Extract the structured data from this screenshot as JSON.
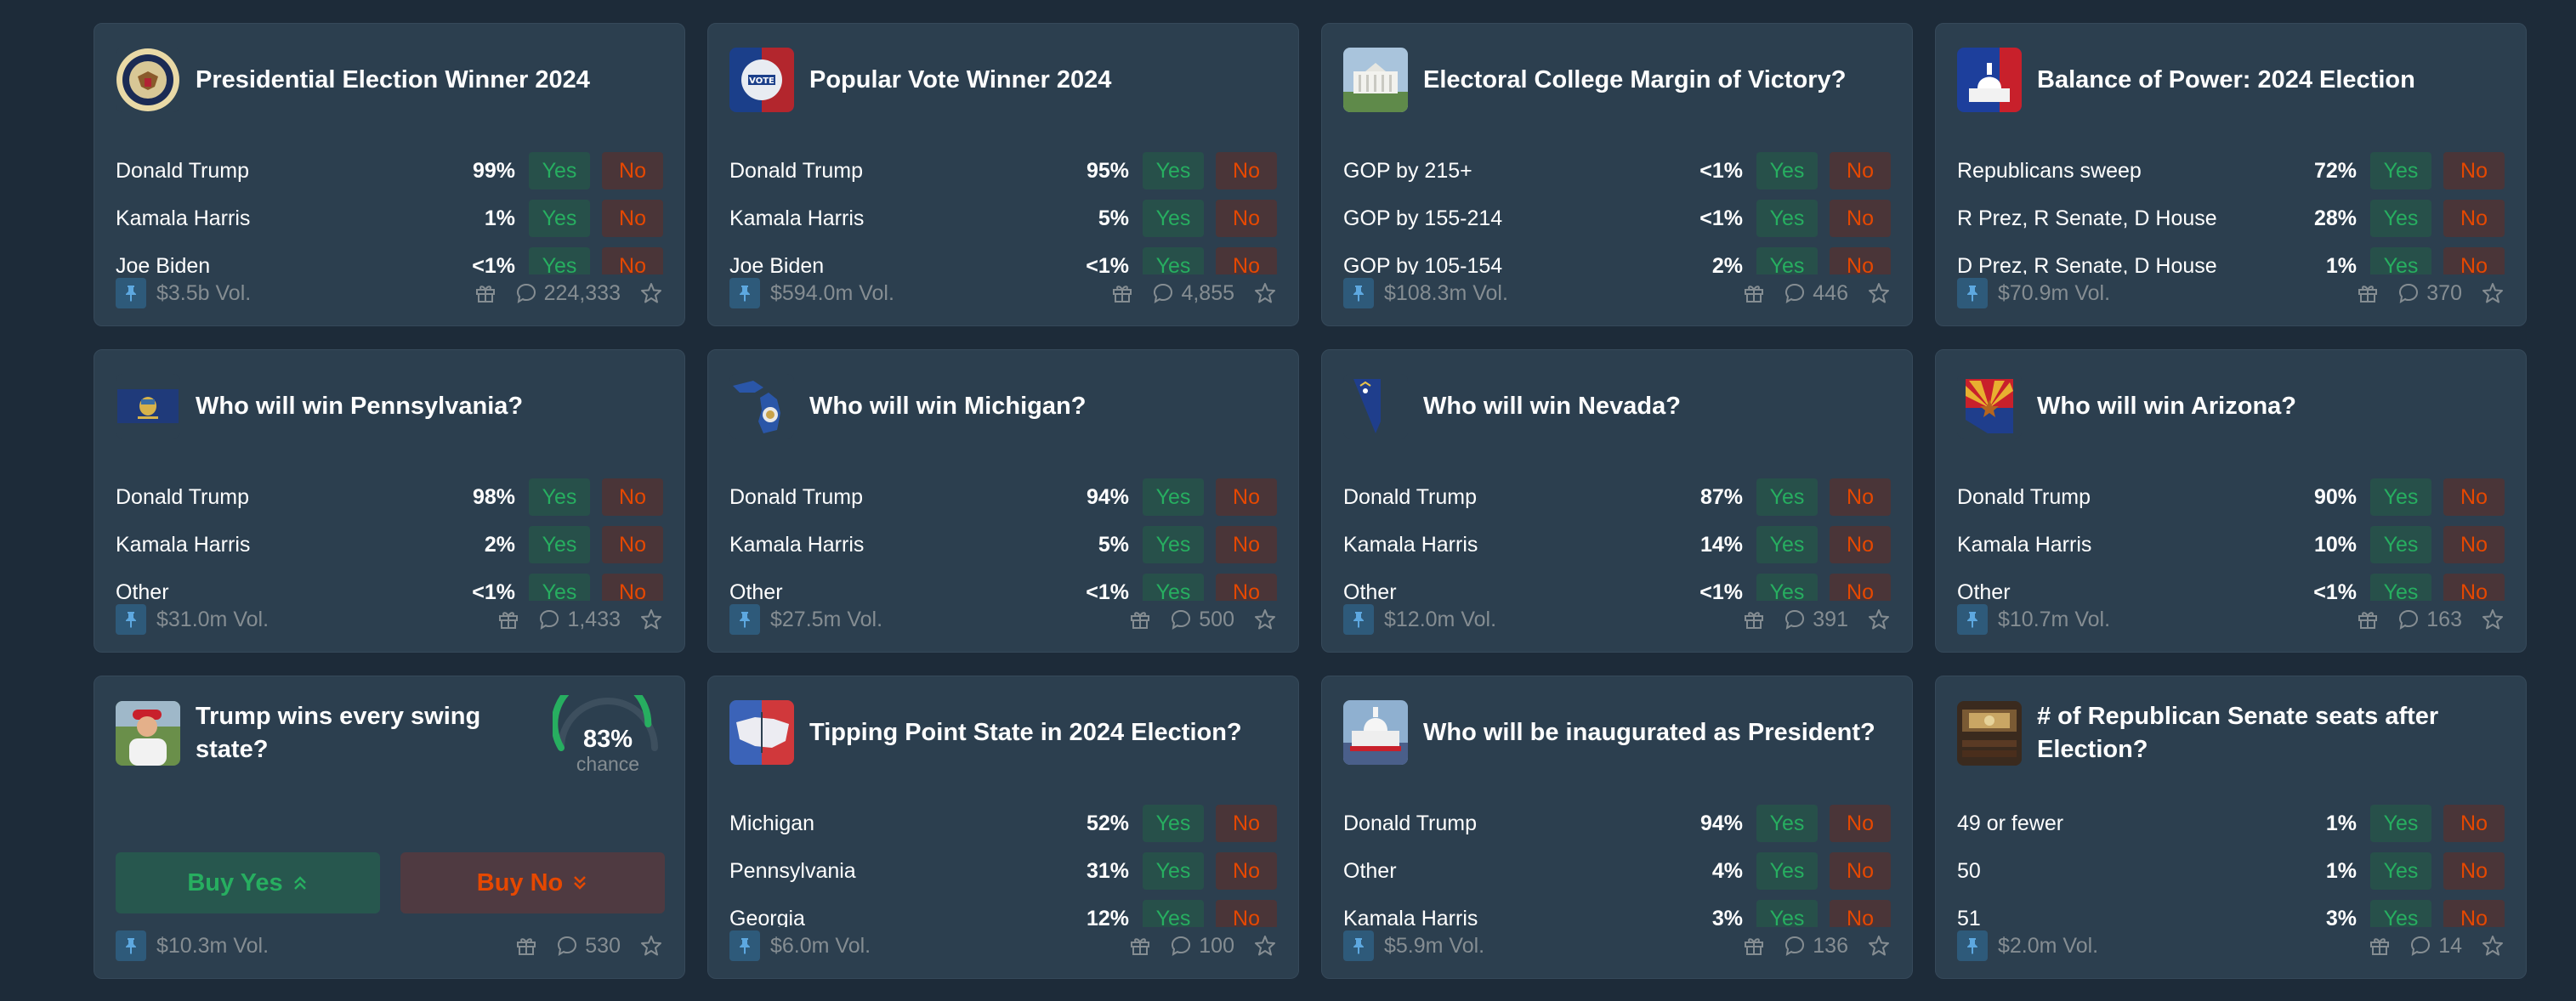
{
  "colors": {
    "background": "#1d2b39",
    "card": "#2c3f4f",
    "yes": "#27ae60",
    "no": "#e64800",
    "muted": "#858d92"
  },
  "labels": {
    "yes": "Yes",
    "no": "No"
  },
  "cards": [
    {
      "title": "Presidential Election Winner 2024",
      "thumb": "presidential-seal",
      "rows": [
        {
          "name": "Donald Trump",
          "pct": "99%"
        },
        {
          "name": "Kamala Harris",
          "pct": "1%"
        },
        {
          "name": "Joe Biden",
          "pct": "<1%"
        }
      ],
      "volume": "$3.5b Vol.",
      "comments": "224,333"
    },
    {
      "title": "Popular Vote Winner 2024",
      "thumb": "vote-button",
      "rows": [
        {
          "name": "Donald Trump",
          "pct": "95%"
        },
        {
          "name": "Kamala Harris",
          "pct": "5%"
        },
        {
          "name": "Joe Biden",
          "pct": "<1%"
        }
      ],
      "volume": "$594.0m Vol.",
      "comments": "4,855"
    },
    {
      "title": "Electoral College Margin of Victory?",
      "thumb": "white-house",
      "rows": [
        {
          "name": "GOP by 215+",
          "pct": "<1%"
        },
        {
          "name": "GOP by 155-214",
          "pct": "<1%"
        },
        {
          "name": "GOP by 105-154",
          "pct": "2%"
        }
      ],
      "volume": "$108.3m Vol.",
      "comments": "446"
    },
    {
      "title": "Balance of Power: 2024 Election",
      "thumb": "capitol-flag",
      "rows": [
        {
          "name": "Republicans sweep",
          "pct": "72%"
        },
        {
          "name": "R Prez, R Senate, D House",
          "pct": "28%"
        },
        {
          "name": "D Prez, R Senate, D House",
          "pct": "1%"
        }
      ],
      "volume": "$70.9m Vol.",
      "comments": "370"
    },
    {
      "title": "Who will win Pennsylvania?",
      "thumb": "pennsylvania-flag",
      "rows": [
        {
          "name": "Donald Trump",
          "pct": "98%"
        },
        {
          "name": "Kamala Harris",
          "pct": "2%"
        },
        {
          "name": "Other",
          "pct": "<1%"
        }
      ],
      "volume": "$31.0m Vol.",
      "comments": "1,433"
    },
    {
      "title": "Who will win Michigan?",
      "thumb": "michigan-map",
      "rows": [
        {
          "name": "Donald Trump",
          "pct": "94%"
        },
        {
          "name": "Kamala Harris",
          "pct": "5%"
        },
        {
          "name": "Other",
          "pct": "<1%"
        }
      ],
      "volume": "$27.5m Vol.",
      "comments": "500"
    },
    {
      "title": "Who will win Nevada?",
      "thumb": "nevada-map",
      "rows": [
        {
          "name": "Donald Trump",
          "pct": "87%"
        },
        {
          "name": "Kamala Harris",
          "pct": "14%"
        },
        {
          "name": "Other",
          "pct": "<1%"
        }
      ],
      "volume": "$12.0m Vol.",
      "comments": "391"
    },
    {
      "title": "Who will win Arizona?",
      "thumb": "arizona-map",
      "rows": [
        {
          "name": "Donald Trump",
          "pct": "90%"
        },
        {
          "name": "Kamala Harris",
          "pct": "10%"
        },
        {
          "name": "Other",
          "pct": "<1%"
        }
      ],
      "volume": "$10.7m Vol.",
      "comments": "163"
    },
    {
      "title": "Trump wins every swing state?",
      "thumb": "trump-photo",
      "gauge": {
        "value": "83%",
        "label": "chance",
        "fraction": 0.83
      },
      "buy_yes": "Buy Yes",
      "buy_no": "Buy No",
      "volume": "$10.3m Vol.",
      "comments": "530"
    },
    {
      "title": "Tipping Point State in 2024 Election?",
      "thumb": "us-map-split",
      "rows": [
        {
          "name": "Michigan",
          "pct": "52%"
        },
        {
          "name": "Pennsylvania",
          "pct": "31%"
        },
        {
          "name": "Georgia",
          "pct": "12%"
        }
      ],
      "volume": "$6.0m Vol.",
      "comments": "100"
    },
    {
      "title": "Who will be inaugurated as President?",
      "thumb": "capitol-inauguration",
      "rows": [
        {
          "name": "Donald Trump",
          "pct": "94%"
        },
        {
          "name": "Other",
          "pct": "4%"
        },
        {
          "name": "Kamala Harris",
          "pct": "3%"
        }
      ],
      "volume": "$5.9m Vol.",
      "comments": "136"
    },
    {
      "title": "# of Republican Senate seats after Election?",
      "thumb": "senate-chamber",
      "rows": [
        {
          "name": "49 or fewer",
          "pct": "1%"
        },
        {
          "name": "50",
          "pct": "1%"
        },
        {
          "name": "51",
          "pct": "3%"
        }
      ],
      "volume": "$2.0m Vol.",
      "comments": "14"
    }
  ]
}
